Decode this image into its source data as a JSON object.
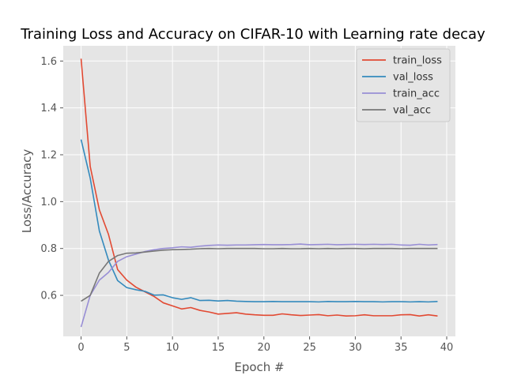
{
  "chart_data": {
    "type": "line",
    "title": "Training Loss and Accuracy on CIFAR-10 with Learning rate decay",
    "xlabel": "Epoch #",
    "ylabel": "Loss/Accuracy",
    "xlim": [
      -1.95,
      40.95
    ],
    "ylim": [
      0.425,
      1.665
    ],
    "xticks": [
      0,
      5,
      10,
      15,
      20,
      25,
      30,
      35,
      40
    ],
    "yticks": [
      0.6,
      0.8,
      1.0,
      1.2,
      1.4,
      1.6
    ],
    "grid": true,
    "legend_position": "top-right",
    "x": [
      0,
      1,
      2,
      3,
      4,
      5,
      6,
      7,
      8,
      9,
      10,
      11,
      12,
      13,
      14,
      15,
      16,
      17,
      18,
      19,
      20,
      21,
      22,
      23,
      24,
      25,
      26,
      27,
      28,
      29,
      30,
      31,
      32,
      33,
      34,
      35,
      36,
      37,
      38,
      39
    ],
    "series": [
      {
        "name": "train_loss",
        "color": "#E24A33",
        "values": [
          1.61,
          1.15,
          0.965,
          0.86,
          0.71,
          0.665,
          0.635,
          0.615,
          0.595,
          0.568,
          0.555,
          0.542,
          0.548,
          0.536,
          0.529,
          0.52,
          0.523,
          0.526,
          0.52,
          0.517,
          0.515,
          0.515,
          0.521,
          0.517,
          0.514,
          0.516,
          0.518,
          0.513,
          0.516,
          0.512,
          0.513,
          0.517,
          0.513,
          0.513,
          0.513,
          0.517,
          0.518,
          0.512,
          0.517,
          0.512
        ]
      },
      {
        "name": "val_loss",
        "color": "#348ABD",
        "values": [
          1.265,
          1.1,
          0.875,
          0.75,
          0.663,
          0.633,
          0.624,
          0.617,
          0.601,
          0.602,
          0.59,
          0.583,
          0.59,
          0.578,
          0.579,
          0.576,
          0.578,
          0.575,
          0.574,
          0.573,
          0.573,
          0.574,
          0.573,
          0.573,
          0.573,
          0.573,
          0.572,
          0.574,
          0.573,
          0.573,
          0.574,
          0.573,
          0.573,
          0.572,
          0.573,
          0.573,
          0.572,
          0.573,
          0.572,
          0.574
        ]
      },
      {
        "name": "train_acc",
        "color": "#988ED5",
        "values": [
          0.465,
          0.6,
          0.665,
          0.698,
          0.745,
          0.765,
          0.776,
          0.787,
          0.795,
          0.8,
          0.803,
          0.807,
          0.805,
          0.81,
          0.813,
          0.815,
          0.814,
          0.815,
          0.815,
          0.816,
          0.817,
          0.816,
          0.816,
          0.817,
          0.819,
          0.816,
          0.817,
          0.818,
          0.816,
          0.817,
          0.818,
          0.817,
          0.818,
          0.817,
          0.818,
          0.815,
          0.814,
          0.818,
          0.815,
          0.817
        ]
      },
      {
        "name": "val_acc",
        "color": "#777777",
        "values": [
          0.575,
          0.6,
          0.695,
          0.745,
          0.77,
          0.78,
          0.781,
          0.785,
          0.789,
          0.793,
          0.795,
          0.796,
          0.797,
          0.799,
          0.8,
          0.799,
          0.8,
          0.8,
          0.8,
          0.8,
          0.799,
          0.799,
          0.8,
          0.799,
          0.799,
          0.8,
          0.799,
          0.8,
          0.799,
          0.8,
          0.8,
          0.799,
          0.8,
          0.8,
          0.8,
          0.799,
          0.8,
          0.8,
          0.8,
          0.8
        ]
      }
    ]
  }
}
